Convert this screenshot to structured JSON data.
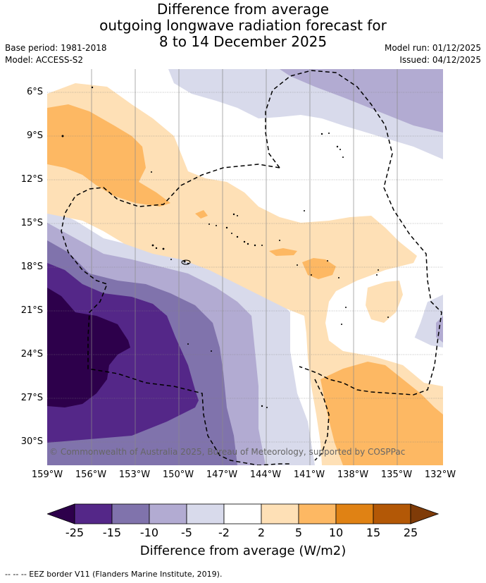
{
  "title": {
    "line1": "Difference from average",
    "line2": "outgoing longwave radiation forecast for",
    "line3": "8 to 14 December 2025"
  },
  "meta": {
    "base_period": "Base period: 1981-2018",
    "model": "Model: ACCESS-S2",
    "model_run": "Model run: 01/12/2025",
    "issued": "Issued: 04/12/2025"
  },
  "map": {
    "lat_labels": [
      "6°S",
      "9°S",
      "12°S",
      "15°S",
      "18°S",
      "21°S",
      "24°S",
      "27°S",
      "30°S"
    ],
    "lon_labels": [
      "159°W",
      "156°W",
      "153°W",
      "150°W",
      "147°W",
      "144°W",
      "141°W",
      "138°W",
      "135°W",
      "132°W"
    ],
    "copyright": "© Commonwealth of Australia 2025, Bureau of Meteorology, supported by COSPPac"
  },
  "colorbar": {
    "ticks": [
      "-25",
      "-15",
      "-10",
      "-5",
      "-2",
      "2",
      "5",
      "10",
      "15",
      "25"
    ],
    "colors": [
      "#2d004b",
      "#542788",
      "#8073ac",
      "#b2abd2",
      "#d8daeb",
      "#ffffff",
      "#fee0b6",
      "#fdb863",
      "#e08214",
      "#b35806",
      "#7f3b08"
    ],
    "title": "Difference from average (W/m2)"
  },
  "footnote": "-- -- -- EEZ border V11 (Flanders Marine Institute, 2019)."
}
